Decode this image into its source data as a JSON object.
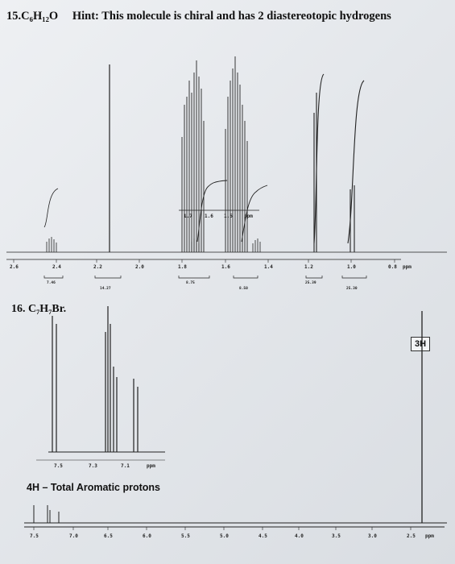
{
  "problem15": {
    "number": "15.",
    "formula": "C₆H₁₂O",
    "hint": "Hint: This molecule is chiral and has 2 diastereotopic hydrogens",
    "axis_ticks": [
      "2.6",
      "2.4",
      "2.2",
      "2.0",
      "1.8",
      "1.6",
      "1.4",
      "1.2",
      "1.0",
      "0.8",
      "ppm"
    ],
    "inset_ticks": [
      "1.7",
      "1.6",
      "1.5",
      "ppm"
    ],
    "integrals": [
      "7.46",
      "14.27",
      "8.75",
      "8.50",
      "25.39",
      "25.30"
    ]
  },
  "problem16": {
    "label": "16. C₇H₇Br.",
    "inset_ticks": [
      "7.5",
      "7.3",
      "7.1",
      "ppm"
    ],
    "aromatic_note": "4H – Total Aromatic protons",
    "methyl_label": "3H",
    "axis_ticks": [
      "7.5",
      "7.0",
      "6.5",
      "6.0",
      "5.5",
      "5.0",
      "4.5",
      "4.0",
      "3.5",
      "3.0",
      "2.5",
      "ppm"
    ]
  }
}
